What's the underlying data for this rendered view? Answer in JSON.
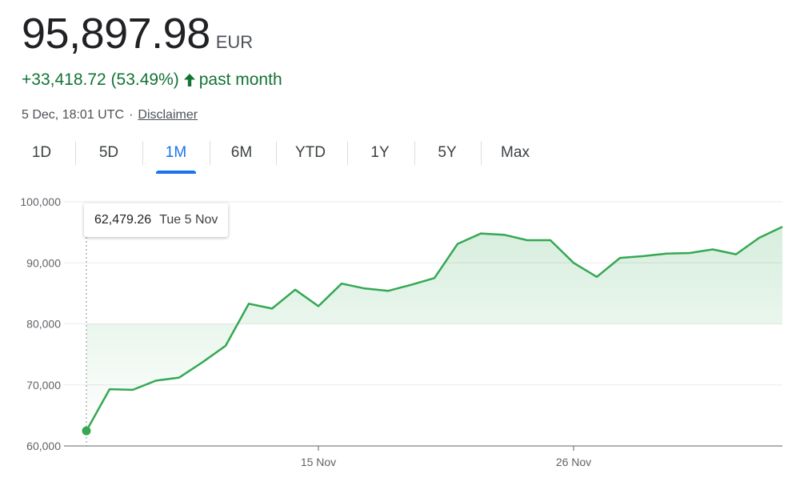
{
  "header": {
    "price": "95,897.98",
    "currency": "EUR",
    "change": "+33,418.72 (53.49%)",
    "change_period": "past month",
    "timestamp": "5 Dec, 18:01 UTC",
    "separator": "·",
    "disclaimer": "Disclaimer"
  },
  "tabs": [
    {
      "label": "1D",
      "active": false
    },
    {
      "label": "5D",
      "active": false
    },
    {
      "label": "1M",
      "active": true
    },
    {
      "label": "6M",
      "active": false
    },
    {
      "label": "YTD",
      "active": false
    },
    {
      "label": "1Y",
      "active": false
    },
    {
      "label": "5Y",
      "active": false
    },
    {
      "label": "Max",
      "active": false
    }
  ],
  "tooltip": {
    "value": "62,479.26",
    "date": "Tue 5 Nov"
  },
  "colors": {
    "line": "#34a853",
    "positive": "#137333",
    "accent": "#1a73e8"
  },
  "chart_data": {
    "type": "area",
    "title": "",
    "xlabel": "",
    "ylabel": "",
    "ylim": [
      60000,
      100000
    ],
    "y_ticks": [
      60000,
      70000,
      80000,
      90000,
      100000
    ],
    "y_tick_labels": [
      "60,000",
      "70,000",
      "80,000",
      "90,000",
      "100,000"
    ],
    "x_tick_labels": [
      "15 Nov",
      "26 Nov"
    ],
    "x_tick_days": [
      15,
      26
    ],
    "grid": true,
    "x_days": [
      5,
      6,
      7,
      8,
      9,
      10,
      11,
      12,
      13,
      14,
      15,
      16,
      17,
      18,
      19,
      20,
      21,
      22,
      23,
      24,
      25,
      26,
      27,
      28,
      29,
      30,
      31,
      32,
      33,
      34,
      35
    ],
    "values": [
      62479,
      69300,
      69200,
      70700,
      71200,
      73700,
      76400,
      83300,
      82500,
      85600,
      82900,
      86600,
      85800,
      85400,
      86400,
      87500,
      93100,
      94800,
      94600,
      93700,
      93700,
      90000,
      87700,
      90800,
      91100,
      91500,
      91600,
      92200,
      91400,
      94100,
      95898
    ]
  }
}
